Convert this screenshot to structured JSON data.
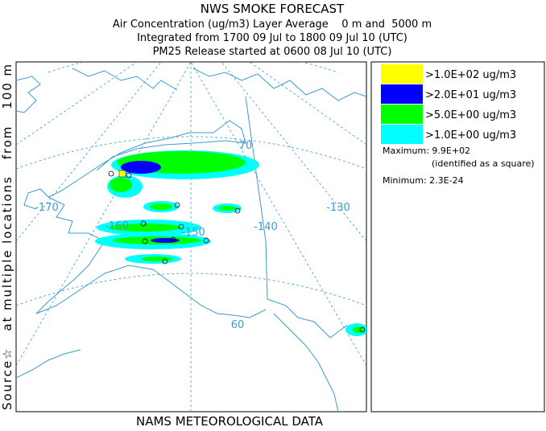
{
  "header": {
    "title": "NWS SMOKE FORECAST",
    "lines": [
      "Air Concentration (ug/m3) Layer Average    0 m and  5000 m",
      "Integrated from 1700 09 Jul to 1800 09 Jul 10 (UTC)",
      "PM25 Release started at 0600 08 Jul 10 (UTC)"
    ]
  },
  "side_label": "Source☆   at multiple locations   from   100 m",
  "footer": "NAMS METEOROLOGICAL DATA",
  "map": {
    "labels": [
      "-170",
      "-160",
      "-150",
      "-140",
      "-130",
      "70",
      "60"
    ]
  },
  "legend": {
    "entries": [
      {
        "label": ">1.0E+02 ug/m3",
        "color": "#ffff00"
      },
      {
        "label": ">2.0E+01 ug/m3",
        "color": "#0000ff"
      },
      {
        "label": ">5.0E+00 ug/m3",
        "color": "#00ff00"
      },
      {
        "label": ">1.0E+00 ug/m3",
        "color": "#00ffff"
      }
    ],
    "maximum": "Maximum: 9.9E+02",
    "max_note": "(identified as a square)",
    "minimum": "Minimum: 2.3E-24"
  }
}
